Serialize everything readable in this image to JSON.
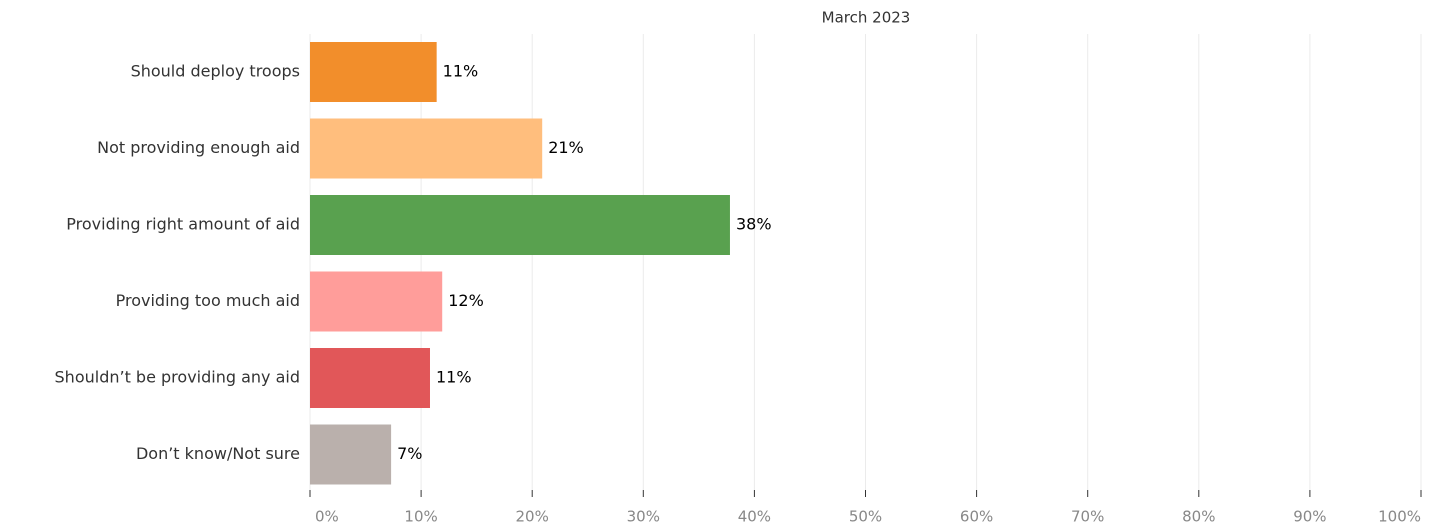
{
  "chart_data": {
    "type": "bar",
    "orientation": "horizontal",
    "title": "March 2023",
    "categories": [
      "Should deploy troops",
      "Not providing enough aid",
      "Providing right amount of aid",
      "Providing too much aid",
      "Shouldn’t be providing any aid",
      "Don’t know/Not sure"
    ],
    "values": [
      11.4,
      20.9,
      37.8,
      11.9,
      10.8,
      7.3
    ],
    "value_labels": [
      "11%",
      "21%",
      "38%",
      "12%",
      "11%",
      "7%"
    ],
    "colors": [
      "#f28e2b",
      "#ffbe7d",
      "#59a14f",
      "#ff9d9a",
      "#e15759",
      "#bab0ac"
    ],
    "xlim": [
      0,
      100
    ],
    "xticks": [
      {
        "value": 0,
        "label": "0%"
      },
      {
        "value": 10,
        "label": "10%"
      },
      {
        "value": 20,
        "label": "20%"
      },
      {
        "value": 30,
        "label": "30%"
      },
      {
        "value": 40,
        "label": "40%"
      },
      {
        "value": 50,
        "label": "50%"
      },
      {
        "value": 60,
        "label": "60%"
      },
      {
        "value": 70,
        "label": "70%"
      },
      {
        "value": 80,
        "label": "80%"
      },
      {
        "value": 90,
        "label": "90%"
      },
      {
        "value": 100,
        "label": "100%"
      }
    ],
    "grid": true
  }
}
